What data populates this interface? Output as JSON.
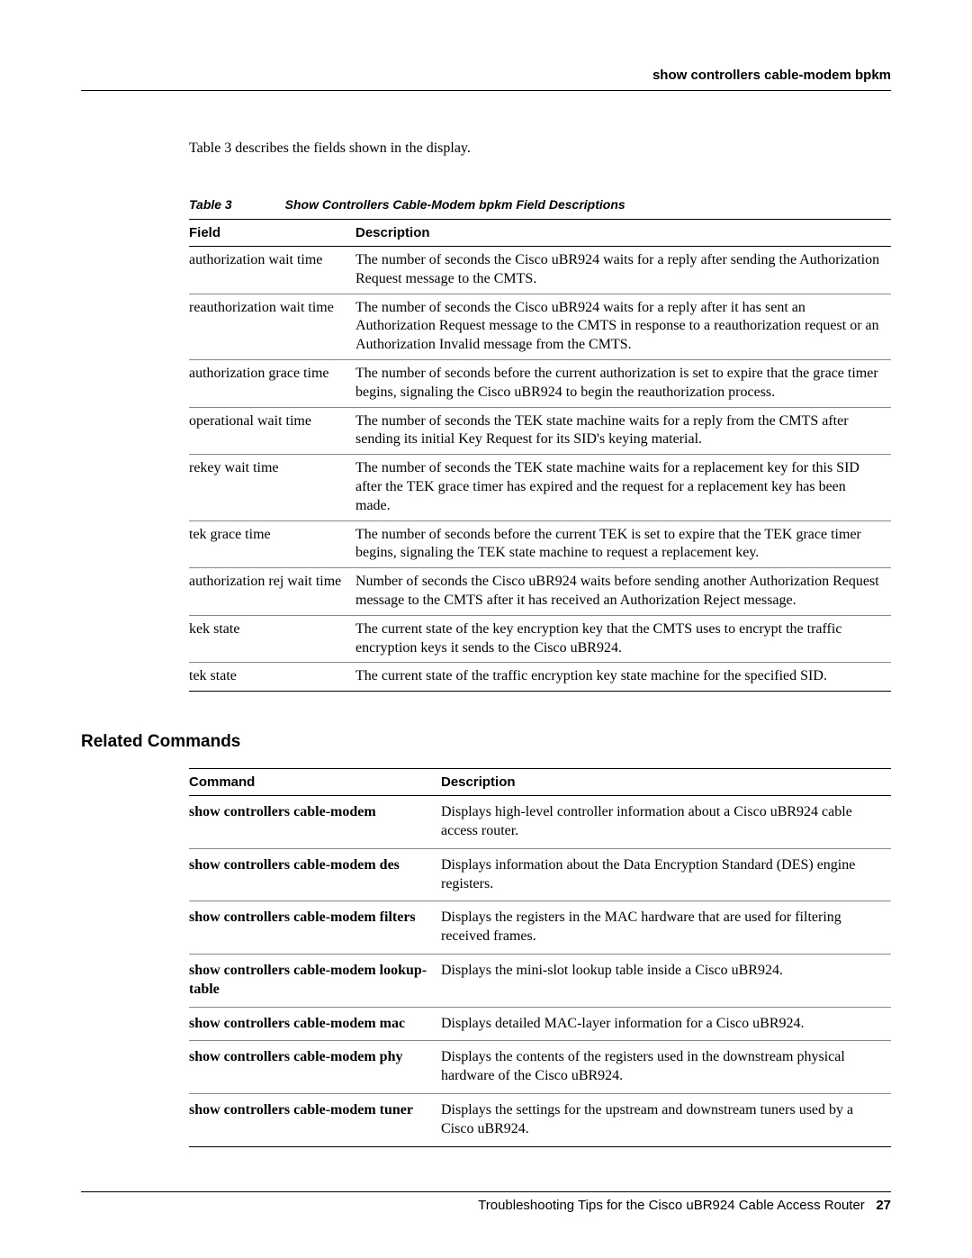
{
  "header": {
    "title": "show controllers cable-modem bpkm"
  },
  "intro": "Table 3 describes the fields shown in the display.",
  "table3": {
    "caption_num": "Table 3",
    "caption_title": "Show Controllers Cable-Modem bpkm Field Descriptions",
    "col1": "Field",
    "col2": "Description",
    "rows": [
      {
        "field": "authorization wait time",
        "desc": "The number of seconds the Cisco uBR924 waits for a reply after sending the Authorization Request message to the CMTS."
      },
      {
        "field": "reauthorization wait time",
        "desc": "The number of seconds the Cisco uBR924 waits for a reply after it has sent an Authorization Request message to the CMTS in response to a reauthorization request or an Authorization Invalid message from the CMTS."
      },
      {
        "field": "authorization grace time",
        "desc": "The number of seconds before the current authorization is set to expire that the grace timer begins, signaling the Cisco uBR924 to begin the reauthorization process."
      },
      {
        "field": "operational wait time",
        "desc": "The number of seconds the TEK state machine waits for a reply from the CMTS after sending its initial Key Request for its SID's keying material."
      },
      {
        "field": "rekey wait time",
        "desc": "The number of seconds the TEK state machine waits for a replacement key for this SID after the TEK grace timer has expired and the request for a replacement key has been made."
      },
      {
        "field": "tek grace time",
        "desc": "The number of seconds before the current TEK is set to expire that the TEK grace timer begins, signaling the TEK state machine to request a replacement key."
      },
      {
        "field": "authorization rej wait time",
        "desc": "Number of seconds the Cisco uBR924 waits before sending another Authorization Request message to the CMTS after it has received an Authorization Reject message."
      },
      {
        "field": "kek state",
        "desc": "The current state of the key encryption key that the CMTS uses to encrypt the traffic encryption keys it sends to the Cisco uBR924."
      },
      {
        "field": "tek state",
        "desc": "The current state of the traffic encryption key state machine for the specified SID."
      }
    ]
  },
  "related": {
    "heading": "Related Commands",
    "col1": "Command",
    "col2": "Description",
    "rows": [
      {
        "cmd": "show controllers cable-modem",
        "desc": "Displays high-level controller information about a Cisco uBR924 cable access router."
      },
      {
        "cmd": "show controllers cable-modem des",
        "desc": "Displays information about the Data Encryption Standard (DES) engine registers."
      },
      {
        "cmd": "show controllers cable-modem filters",
        "desc": "Displays the registers in the MAC hardware that are used for filtering received frames."
      },
      {
        "cmd": "show controllers cable-modem lookup-table",
        "desc": "Displays the mini-slot lookup table inside a Cisco uBR924."
      },
      {
        "cmd": "show controllers cable-modem mac",
        "desc": "Displays detailed MAC-layer information for a Cisco uBR924."
      },
      {
        "cmd": "show controllers cable-modem phy",
        "desc": "Displays the contents of the registers used in the downstream physical hardware of the Cisco uBR924."
      },
      {
        "cmd": "show controllers cable-modem tuner",
        "desc": "Displays the settings for the upstream and downstream tuners used by a Cisco uBR924."
      }
    ]
  },
  "footer": {
    "text": "Troubleshooting Tips for the Cisco uBR924 Cable Access Router",
    "page": "27"
  }
}
